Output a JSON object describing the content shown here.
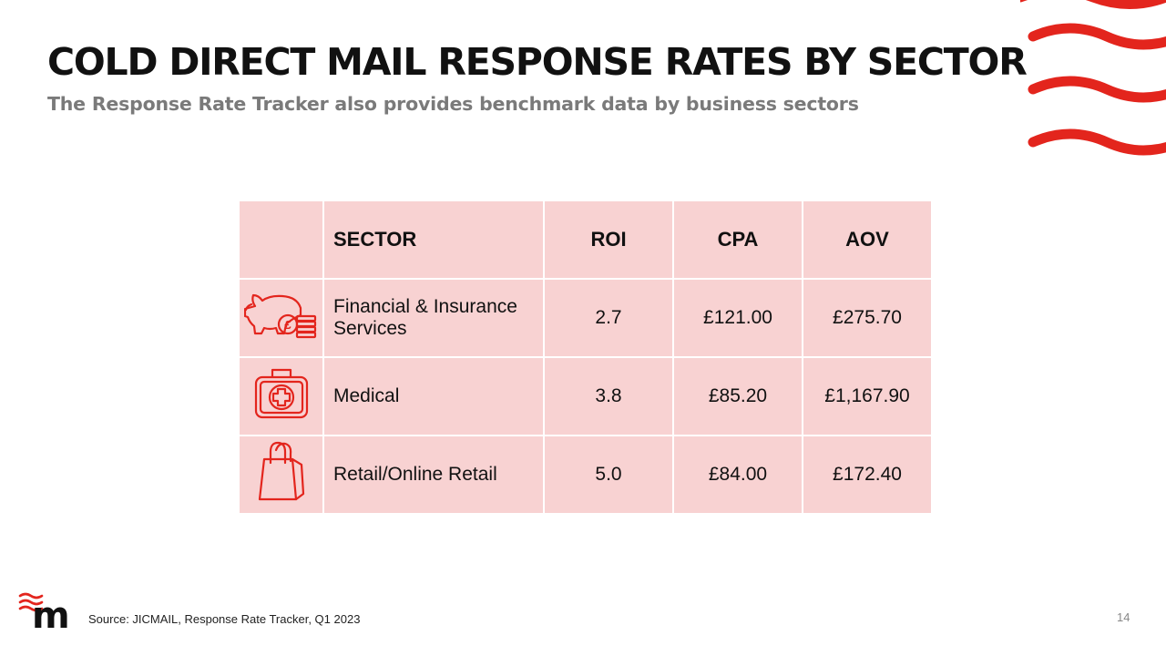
{
  "slide": {
    "title": "COLD DIRECT MAIL RESPONSE RATES BY SECTOR",
    "subtitle": "The Response Rate Tracker also provides benchmark data by business sectors"
  },
  "table": {
    "headers": {
      "sector": "SECTOR",
      "roi": "ROI",
      "cpa": "CPA",
      "aov": "AOV"
    },
    "rows": [
      {
        "icon": "piggy-bank-coins-icon",
        "sector": "Financial & Insurance Services",
        "roi": "2.7",
        "cpa": "£121.00",
        "aov": "£275.70"
      },
      {
        "icon": "medical-kit-icon",
        "sector": "Medical",
        "roi": "3.8",
        "cpa": "£85.20",
        "aov": "£1,167.90"
      },
      {
        "icon": "shopping-bag-icon",
        "sector": "Retail/Online Retail",
        "roi": "5.0",
        "cpa": "£84.00",
        "aov": "£172.40"
      }
    ]
  },
  "icon_glyph": "£",
  "footer": {
    "logo_letter": "m",
    "source": "Source: JICMAIL, Response Rate Tracker, Q1 2023",
    "page_number": "14"
  },
  "colors": {
    "accent": "#e3251d",
    "table_fill": "#f8d2d2",
    "title": "#111111",
    "subtitle": "#7a7a7a"
  }
}
